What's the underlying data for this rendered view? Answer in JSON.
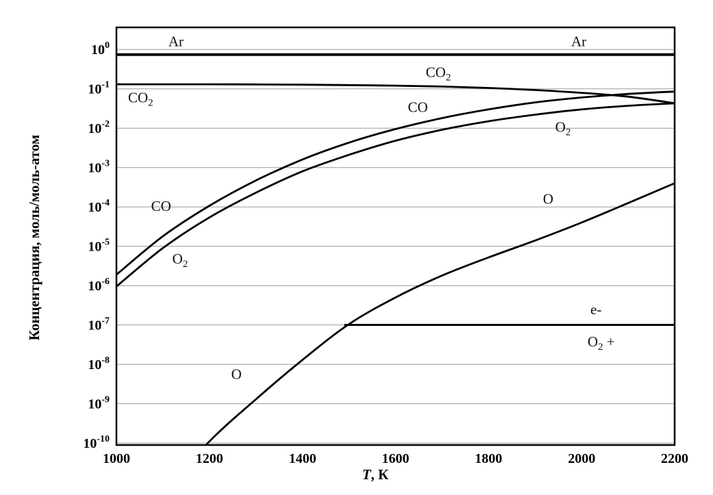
{
  "chart_data": {
    "type": "line",
    "title": "",
    "xlabel": {
      "var": "T",
      "rest": ", К"
    },
    "ylabel": "Концентрация, моль/моль-атом",
    "x_ticks": [
      1000,
      1200,
      1400,
      1600,
      1800,
      2000,
      2200
    ],
    "y_tick_exponents": [
      0,
      -1,
      -2,
      -3,
      -4,
      -5,
      -6,
      -7,
      -8,
      -9,
      -10
    ],
    "xlim": [
      1000,
      2200
    ],
    "ylim_log": [
      0.56,
      -10.05
    ],
    "grid": "horizontal",
    "legend": "inline-labels",
    "axis_color": "#000000",
    "grid_color": "#9b9b9b",
    "line_color": "#000000",
    "series": [
      {
        "name": "Ar",
        "width": 4,
        "x": [
          1000,
          2200
        ],
        "values": [
          0.74,
          0.74
        ]
      },
      {
        "name": "CO2",
        "width": 2.8,
        "x": [
          1000,
          1100,
          1200,
          1300,
          1400,
          1500,
          1600,
          1700,
          1800,
          1900,
          2000,
          2100,
          2200
        ],
        "values": [
          0.13,
          0.13,
          0.13,
          0.129,
          0.127,
          0.124,
          0.12,
          0.114,
          0.105,
          0.093,
          0.079,
          0.063,
          0.043
        ]
      },
      {
        "name": "CO",
        "width": 2.8,
        "x": [
          1000,
          1100,
          1200,
          1300,
          1400,
          1500,
          1600,
          1700,
          1800,
          1900,
          2000,
          2100,
          2200
        ],
        "values": [
          1.9e-06,
          1.8e-05,
          0.000107,
          0.00047,
          0.0016,
          0.0043,
          0.0095,
          0.018,
          0.03,
          0.045,
          0.06,
          0.074,
          0.085
        ]
      },
      {
        "name": "O2",
        "width": 2.8,
        "x": [
          1000,
          1100,
          1200,
          1300,
          1400,
          1500,
          1600,
          1700,
          1800,
          1900,
          2000,
          2100,
          2200
        ],
        "values": [
          9.5e-07,
          9e-06,
          5.4e-05,
          0.00023,
          0.0008,
          0.0021,
          0.0048,
          0.0091,
          0.015,
          0.022,
          0.03,
          0.037,
          0.043
        ]
      },
      {
        "name": "O",
        "width": 2.8,
        "x": [
          1100,
          1200,
          1300,
          1400,
          1500,
          1600,
          1700,
          1800,
          1900,
          2000,
          2100,
          2200
        ],
        "values": [
          5e-12,
          1.1e-10,
          1.3e-09,
          1.3e-08,
          1.05e-07,
          5e-07,
          1.8e-06,
          5.2e-06,
          1.4e-05,
          4e-05,
          0.000125,
          0.0004
        ]
      },
      {
        "name": "e-",
        "width": 2.8,
        "x": [
          1490,
          2200
        ],
        "values": [
          1e-07,
          1e-07
        ]
      },
      {
        "name": "O2+",
        "width": 2.8,
        "x": [
          1490,
          2200
        ],
        "values": [
          1e-07,
          1e-07
        ]
      }
    ],
    "labels": [
      {
        "main": "Ar",
        "sub": "",
        "tail": "",
        "T": 1128,
        "c": 1.6
      },
      {
        "main": "Ar",
        "sub": "",
        "tail": "",
        "T": 1994,
        "c": 1.6
      },
      {
        "main": "CO",
        "sub": "2",
        "tail": "",
        "T": 1052,
        "c": 0.06
      },
      {
        "main": "CO",
        "sub": "2",
        "tail": "",
        "T": 1692,
        "c": 0.265
      },
      {
        "main": "CO",
        "sub": "",
        "tail": "",
        "T": 1648,
        "c": 0.034
      },
      {
        "main": "CO",
        "sub": "",
        "tail": "",
        "T": 1096,
        "c": 0.000105
      },
      {
        "main": "O",
        "sub": "2",
        "tail": "",
        "T": 1137,
        "c": 4.8e-06
      },
      {
        "main": "O",
        "sub": "2",
        "tail": "",
        "T": 1960,
        "c": 0.0107
      },
      {
        "main": "O",
        "sub": "",
        "tail": "",
        "T": 1928,
        "c": 0.00016
      },
      {
        "main": "O",
        "sub": "",
        "tail": "",
        "T": 1258,
        "c": 5.6e-09
      },
      {
        "main": "e-",
        "sub": "",
        "tail": "",
        "T": 2031,
        "c": 2.5e-07
      },
      {
        "main": "O",
        "sub": "2",
        "tail": " +",
        "T": 2042,
        "c": 3.8e-08
      }
    ]
  }
}
